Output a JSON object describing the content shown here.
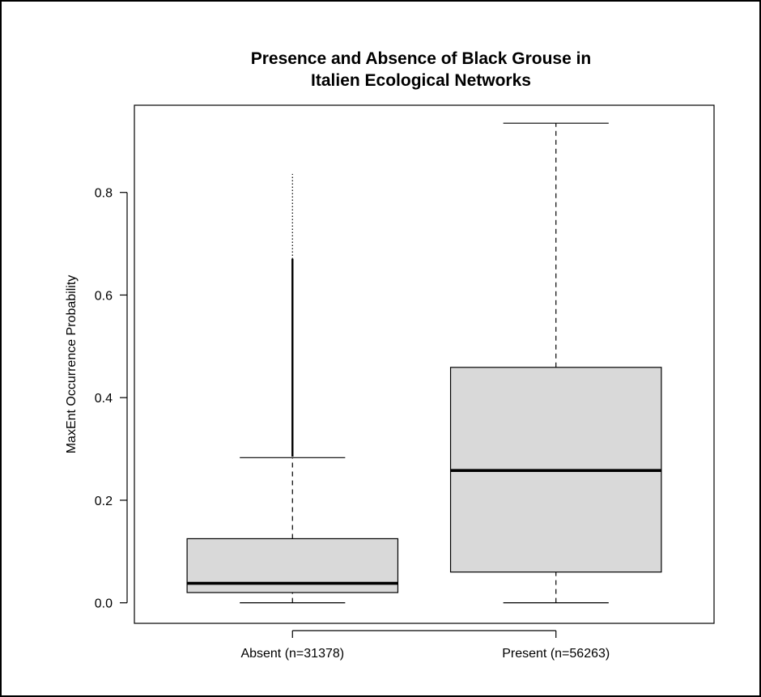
{
  "chart_data": {
    "type": "box",
    "title_lines": [
      "Presence and Absence of Black Grouse in",
      "Italien Ecological Networks"
    ],
    "ylabel": "MaxEnt Occurrence Probability",
    "xlabel": "",
    "ylim": [
      -0.04,
      0.97
    ],
    "yticks": [
      0.0,
      0.2,
      0.4,
      0.6,
      0.8
    ],
    "ytick_labels": [
      "0.0",
      "0.2",
      "0.4",
      "0.6",
      "0.8"
    ],
    "grid": false,
    "box_fill": "#d9d9d9",
    "categories": [
      "Absent (n=31378)",
      "Present (n=56263)"
    ],
    "boxes": [
      {
        "min": 0.0,
        "q1": 0.02,
        "median": 0.038,
        "q3": 0.125,
        "max": 0.283,
        "outliers_from": 0.285,
        "outliers_to": 0.836
      },
      {
        "min": 0.0,
        "q1": 0.06,
        "median": 0.258,
        "q3": 0.459,
        "max": 0.935,
        "outliers_from": null,
        "outliers_to": null
      }
    ]
  }
}
